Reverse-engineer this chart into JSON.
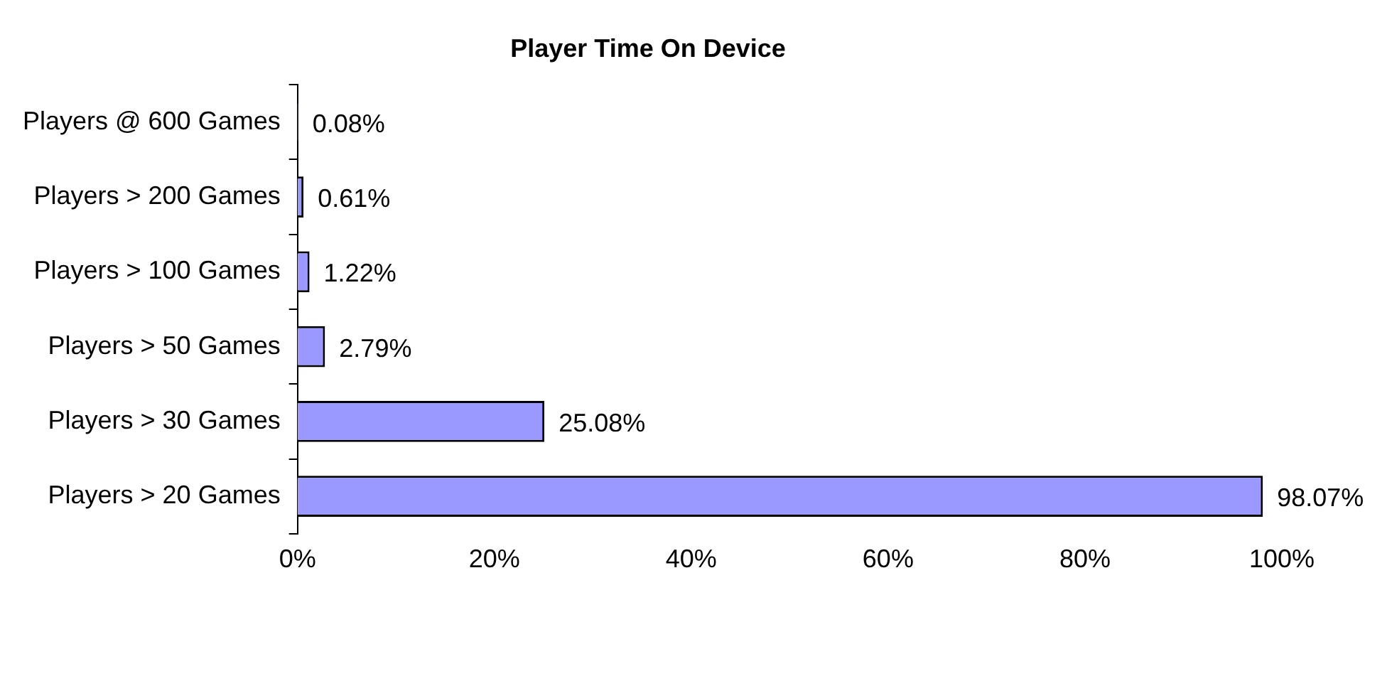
{
  "chart_data": {
    "type": "bar",
    "orientation": "horizontal",
    "title": "Player Time On Device",
    "categories": [
      "Players @ 600 Games",
      "Players > 200 Games",
      "Players > 100 Games",
      "Players > 50 Games",
      "Players > 30 Games",
      "Players > 20 Games"
    ],
    "values": [
      0.08,
      0.61,
      1.22,
      2.79,
      25.08,
      98.07
    ],
    "value_labels": [
      "0.08%",
      "0.61%",
      "1.22%",
      "2.79%",
      "25.08%",
      "98.07%"
    ],
    "color": "#9999ff",
    "xlim": [
      0,
      100
    ],
    "xticks": [
      {
        "value": 0,
        "label": "0%"
      },
      {
        "value": 20,
        "label": "20%"
      },
      {
        "value": 40,
        "label": "40%"
      },
      {
        "value": 60,
        "label": "60%"
      },
      {
        "value": 80,
        "label": "80%"
      },
      {
        "value": 100,
        "label": "100%"
      }
    ],
    "grid": false,
    "legend": false
  }
}
